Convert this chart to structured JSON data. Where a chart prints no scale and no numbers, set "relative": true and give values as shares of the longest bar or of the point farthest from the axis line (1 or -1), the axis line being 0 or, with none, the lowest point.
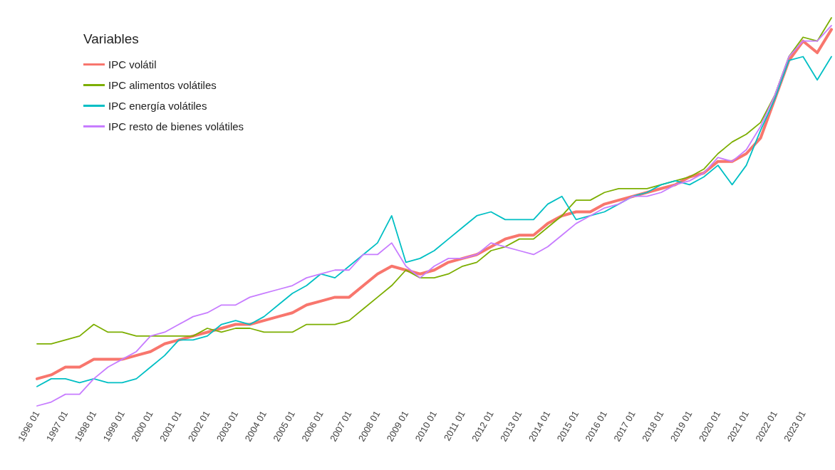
{
  "chart_data": {
    "type": "line",
    "relative": true,
    "legend_title": "Variables",
    "legend": "top left",
    "grid": false,
    "tick_labels": "x",
    "marker": "none",
    "line_style": "solid",
    "categories": [
      "1996 01",
      null,
      "1997 01",
      null,
      "1998 01",
      null,
      "1999 01",
      null,
      "2000 01",
      null,
      "2001 01",
      null,
      "2002 01",
      null,
      "2003 01",
      null,
      "2004 01",
      null,
      "2005 01",
      null,
      "2006 01",
      null,
      "2007 01",
      null,
      "2008 01",
      null,
      "2009 01",
      null,
      "2010 01",
      null,
      "2011 01",
      null,
      "2012 01",
      null,
      "2013 01",
      null,
      "2014 01",
      null,
      "2015 01",
      null,
      "2016 01",
      null,
      "2017 01",
      null,
      "2018 01",
      null,
      "2019 01",
      null,
      "2020 01",
      null,
      "2021 01",
      null,
      "2022 01",
      null,
      "2023 01",
      null,
      null
    ],
    "series": [
      {
        "name": "IPC volátil",
        "color": "#f8766d",
        "values": [
          0.07,
          0.08,
          0.1,
          0.1,
          0.12,
          0.12,
          0.12,
          0.13,
          0.14,
          0.16,
          0.17,
          0.18,
          0.19,
          0.2,
          0.21,
          0.21,
          0.22,
          0.23,
          0.24,
          0.26,
          0.27,
          0.28,
          0.28,
          0.31,
          0.34,
          0.36,
          0.35,
          0.34,
          0.35,
          0.37,
          0.38,
          0.39,
          0.41,
          0.43,
          0.44,
          0.44,
          0.47,
          0.49,
          0.5,
          0.5,
          0.52,
          0.53,
          0.54,
          0.55,
          0.56,
          0.57,
          0.59,
          0.6,
          0.63,
          0.63,
          0.65,
          0.69,
          0.79,
          0.89,
          0.94,
          0.91,
          0.97
        ]
      },
      {
        "name": "IPC alimentos volátiles",
        "color": "#7cae00",
        "values": [
          0.16,
          0.16,
          0.17,
          0.18,
          0.21,
          0.19,
          0.19,
          0.18,
          0.18,
          0.18,
          0.18,
          0.18,
          0.2,
          0.19,
          0.2,
          0.2,
          0.19,
          0.19,
          0.19,
          0.21,
          0.21,
          0.21,
          0.22,
          0.25,
          0.28,
          0.31,
          0.35,
          0.33,
          0.33,
          0.34,
          0.36,
          0.37,
          0.4,
          0.41,
          0.43,
          0.43,
          0.46,
          0.49,
          0.53,
          0.53,
          0.55,
          0.56,
          0.56,
          0.56,
          0.57,
          0.58,
          0.59,
          0.61,
          0.65,
          0.68,
          0.7,
          0.73,
          0.8,
          0.9,
          0.95,
          0.94,
          1
        ]
      },
      {
        "name": "IPC energía volátiles",
        "color": "#00bfc4",
        "values": [
          0.05,
          0.07,
          0.07,
          0.06,
          0.07,
          0.06,
          0.06,
          0.07,
          0.1,
          0.13,
          0.17,
          0.17,
          0.18,
          0.21,
          0.22,
          0.21,
          0.23,
          0.26,
          0.29,
          0.31,
          0.34,
          0.33,
          0.36,
          0.39,
          0.42,
          0.49,
          0.37,
          0.38,
          0.4,
          0.43,
          0.46,
          0.49,
          0.5,
          0.48,
          0.48,
          0.48,
          0.52,
          0.54,
          0.48,
          0.49,
          0.5,
          0.52,
          0.54,
          0.55,
          0.57,
          0.58,
          0.57,
          0.59,
          0.62,
          0.57,
          0.62,
          0.71,
          0.79,
          0.89,
          0.9,
          0.84,
          0.9
        ]
      },
      {
        "name": "IPC resto de bienes volátiles",
        "color": "#c77cff",
        "values": [
          0,
          0.01,
          0.03,
          0.03,
          0.07,
          0.1,
          0.12,
          0.14,
          0.18,
          0.19,
          0.21,
          0.23,
          0.24,
          0.26,
          0.26,
          0.28,
          0.29,
          0.3,
          0.31,
          0.33,
          0.34,
          0.35,
          0.35,
          0.39,
          0.39,
          0.42,
          0.36,
          0.33,
          0.36,
          0.38,
          0.38,
          0.39,
          0.42,
          0.41,
          0.4,
          0.39,
          0.41,
          0.44,
          0.47,
          0.49,
          0.51,
          0.52,
          0.54,
          0.54,
          0.55,
          0.57,
          0.58,
          0.6,
          0.64,
          0.63,
          0.66,
          0.72,
          0.8,
          0.9,
          0.94,
          0.94,
          0.98
        ]
      }
    ]
  }
}
